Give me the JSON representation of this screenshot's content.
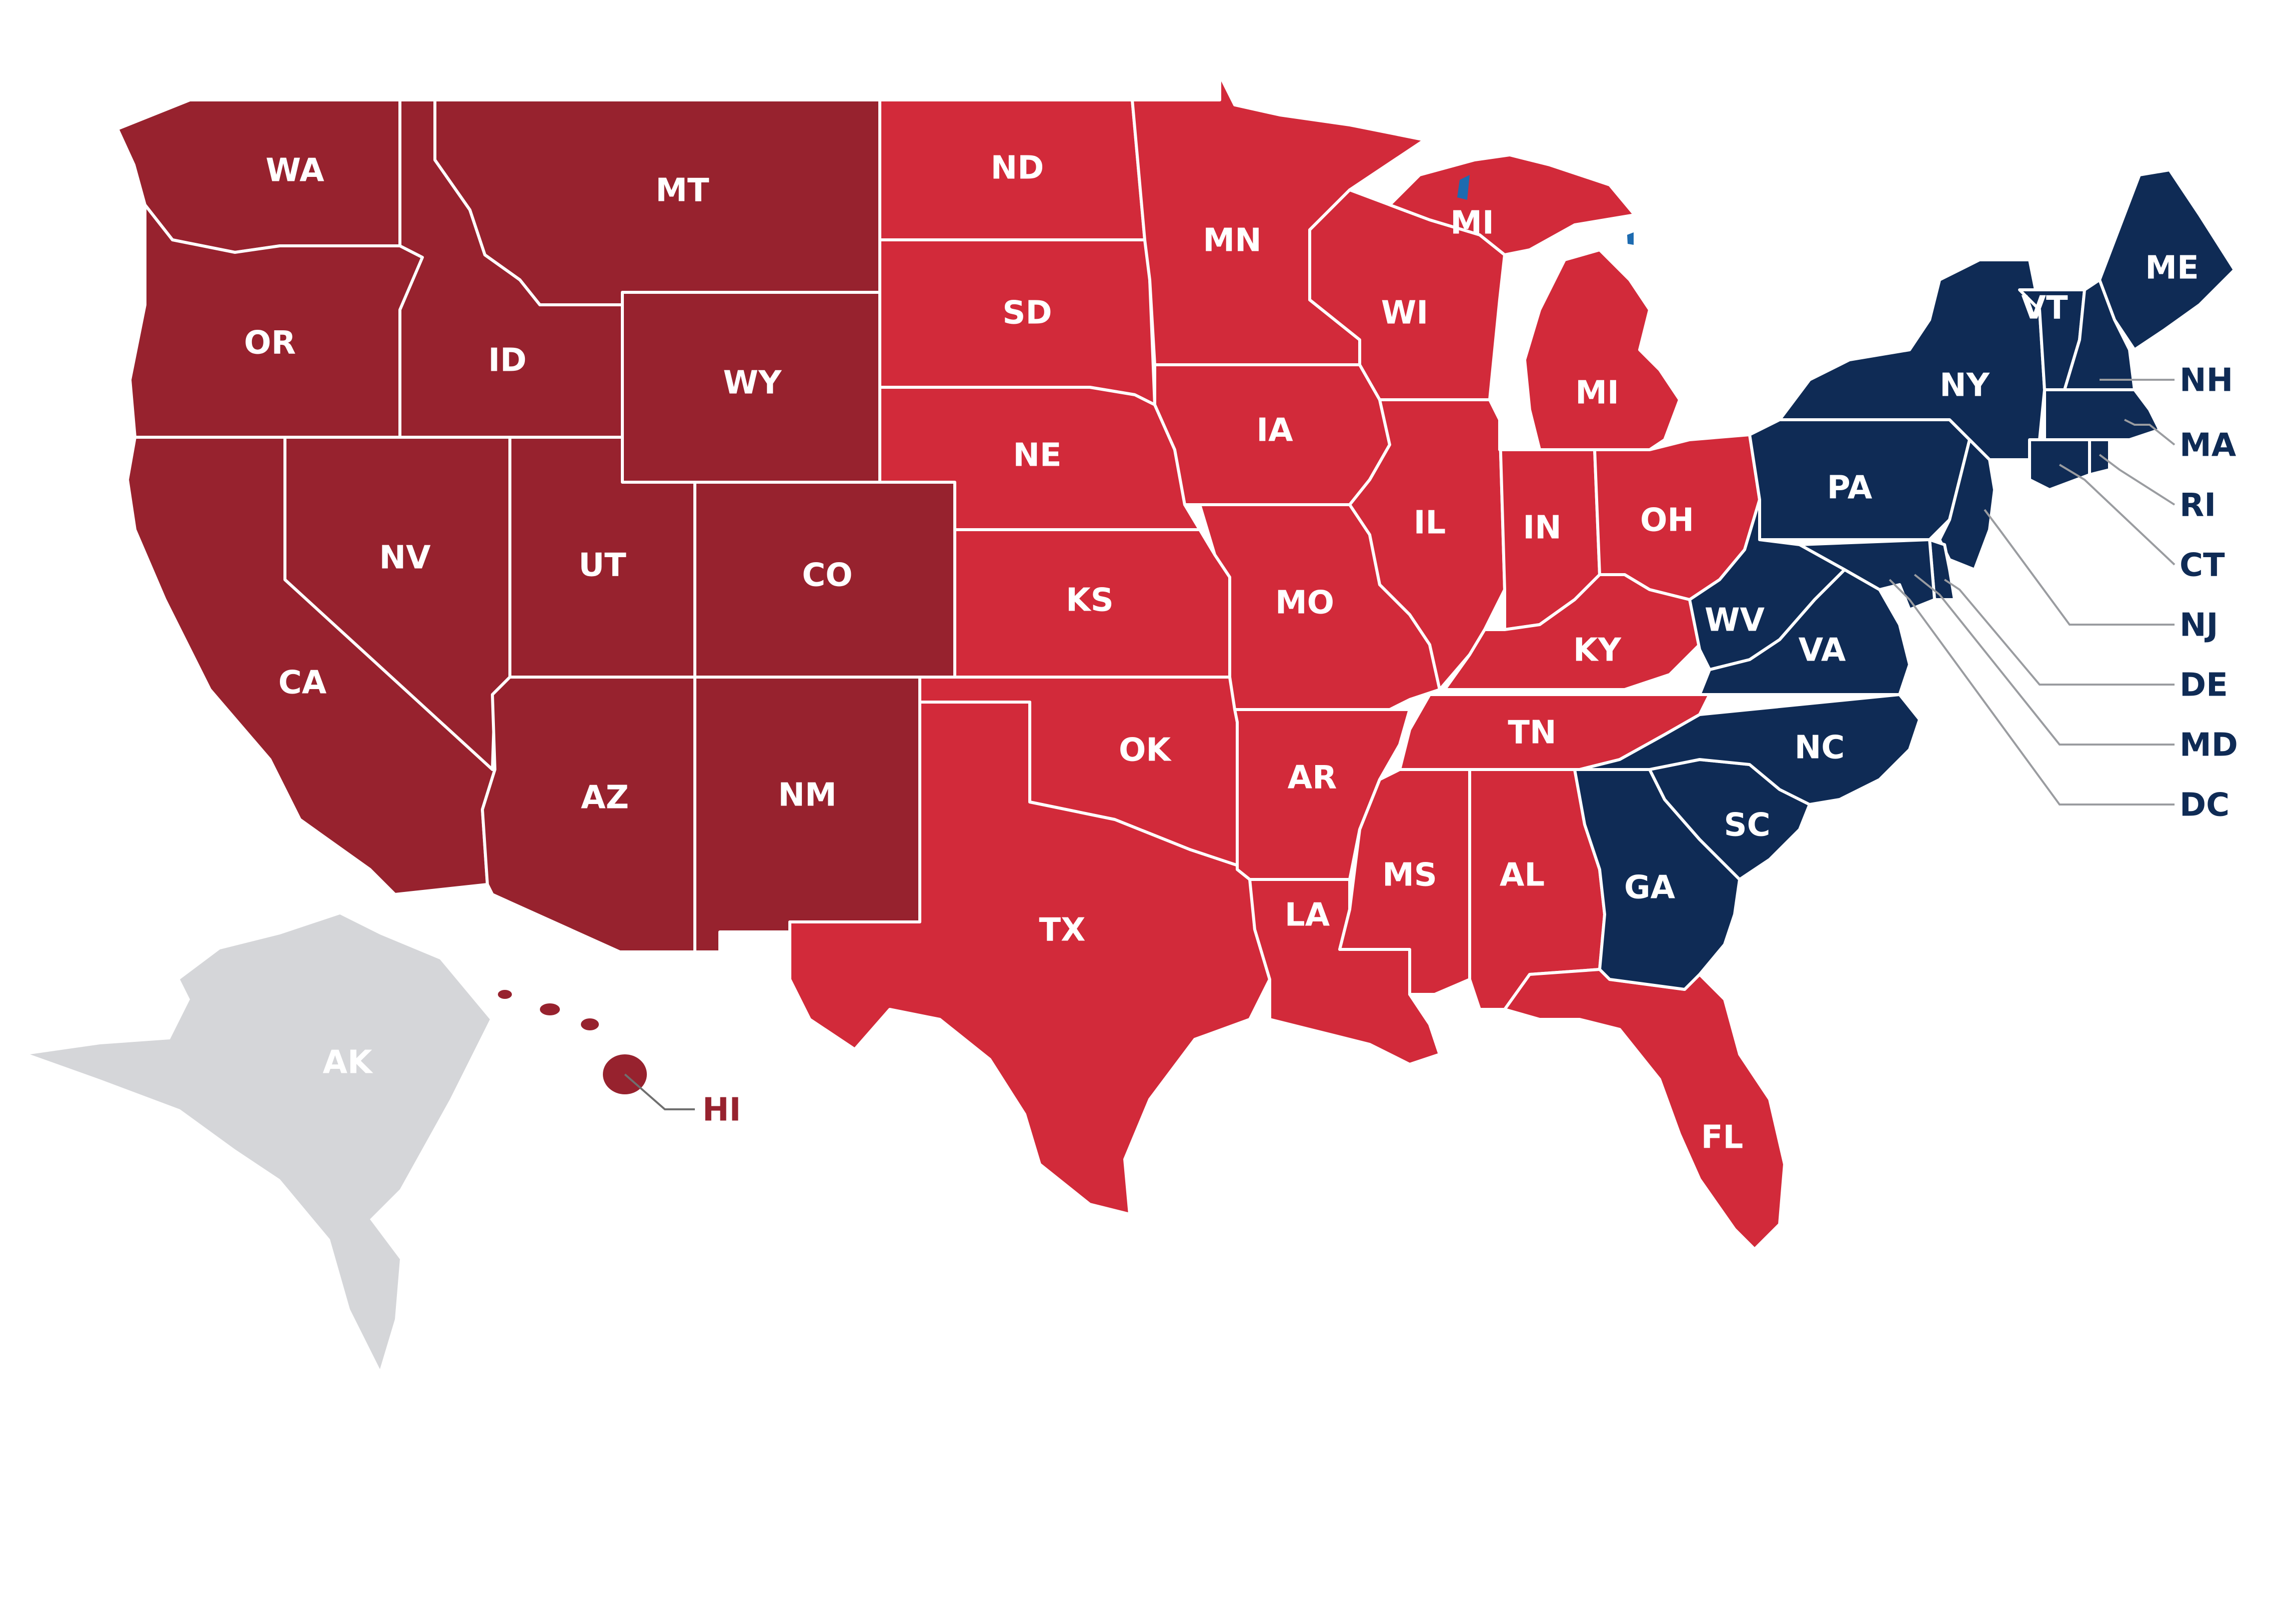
{
  "colors": {
    "dark_red": "#97222e",
    "red": "#d22a3a",
    "navy": "#0f2b55",
    "gray": "#d5d6d9",
    "white": "#ffffff",
    "lake": "#1d6bb0"
  },
  "states": [
    {
      "code": "WA",
      "group": "dark_red"
    },
    {
      "code": "OR",
      "group": "dark_red"
    },
    {
      "code": "CA",
      "group": "dark_red"
    },
    {
      "code": "ID",
      "group": "dark_red"
    },
    {
      "code": "NV",
      "group": "dark_red"
    },
    {
      "code": "MT",
      "group": "dark_red"
    },
    {
      "code": "WY",
      "group": "dark_red"
    },
    {
      "code": "UT",
      "group": "dark_red"
    },
    {
      "code": "CO",
      "group": "dark_red"
    },
    {
      "code": "AZ",
      "group": "dark_red"
    },
    {
      "code": "NM",
      "group": "dark_red"
    },
    {
      "code": "HI",
      "group": "dark_red"
    },
    {
      "code": "ND",
      "group": "red"
    },
    {
      "code": "SD",
      "group": "red"
    },
    {
      "code": "NE",
      "group": "red"
    },
    {
      "code": "KS",
      "group": "red"
    },
    {
      "code": "OK",
      "group": "red"
    },
    {
      "code": "TX",
      "group": "red"
    },
    {
      "code": "MN",
      "group": "red"
    },
    {
      "code": "IA",
      "group": "red"
    },
    {
      "code": "MO",
      "group": "red"
    },
    {
      "code": "AR",
      "group": "red"
    },
    {
      "code": "LA",
      "group": "red"
    },
    {
      "code": "WI",
      "group": "red"
    },
    {
      "code": "IL",
      "group": "red"
    },
    {
      "code": "MI",
      "group": "red"
    },
    {
      "code": "IN",
      "group": "red"
    },
    {
      "code": "OH",
      "group": "red"
    },
    {
      "code": "KY",
      "group": "red"
    },
    {
      "code": "TN",
      "group": "red"
    },
    {
      "code": "MS",
      "group": "red"
    },
    {
      "code": "AL",
      "group": "red"
    },
    {
      "code": "FL",
      "group": "red"
    },
    {
      "code": "GA",
      "group": "navy"
    },
    {
      "code": "SC",
      "group": "navy"
    },
    {
      "code": "NC",
      "group": "navy"
    },
    {
      "code": "VA",
      "group": "navy"
    },
    {
      "code": "WV",
      "group": "navy"
    },
    {
      "code": "PA",
      "group": "navy"
    },
    {
      "code": "NY",
      "group": "navy"
    },
    {
      "code": "VT",
      "group": "navy"
    },
    {
      "code": "ME",
      "group": "navy"
    },
    {
      "code": "NH",
      "group": "navy"
    },
    {
      "code": "MA",
      "group": "navy"
    },
    {
      "code": "RI",
      "group": "navy"
    },
    {
      "code": "CT",
      "group": "navy"
    },
    {
      "code": "NJ",
      "group": "navy"
    },
    {
      "code": "DE",
      "group": "navy"
    },
    {
      "code": "MD",
      "group": "navy"
    },
    {
      "code": "DC",
      "group": "navy"
    },
    {
      "code": "AK",
      "group": "gray"
    }
  ],
  "labels": {
    "WA": "WA",
    "OR": "OR",
    "CA": "CA",
    "ID": "ID",
    "NV": "NV",
    "MT": "MT",
    "WY": "WY",
    "UT": "UT",
    "CO": "CO",
    "AZ": "AZ",
    "NM": "NM",
    "ND": "ND",
    "SD": "SD",
    "NE": "NE",
    "KS": "KS",
    "OK": "OK",
    "TX": "TX",
    "MN": "MN",
    "IA": "IA",
    "MO": "MO",
    "AR": "AR",
    "LA": "LA",
    "WI": "WI",
    "IL": "IL",
    "MI_upper": "MI",
    "MI_lower": "MI",
    "IN": "IN",
    "OH": "OH",
    "KY": "KY",
    "TN": "TN",
    "MS": "MS",
    "AL": "AL",
    "FL": "FL",
    "GA": "GA",
    "SC": "SC",
    "NC": "NC",
    "VA": "VA",
    "WV": "WV",
    "PA": "PA",
    "NY": "NY",
    "VT": "VT",
    "ME": "ME",
    "AK": "AK"
  },
  "callouts": {
    "NH": "NH",
    "MA": "MA",
    "RI": "RI",
    "CT": "CT",
    "NJ": "NJ",
    "DE": "DE",
    "MD": "MD",
    "DC": "DC",
    "HI": "HI"
  }
}
